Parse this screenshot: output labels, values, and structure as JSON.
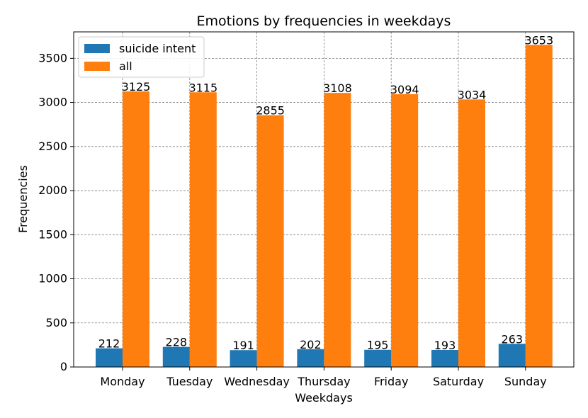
{
  "chart_data": {
    "type": "bar",
    "title": "Emotions by frequencies in weekdays",
    "xlabel": "Weekdays",
    "ylabel": "Frequencies",
    "categories": [
      "Monday",
      "Tuesday",
      "Wednesday",
      "Thursday",
      "Friday",
      "Saturday",
      "Sunday"
    ],
    "series": [
      {
        "name": "suicide intent",
        "color": "#1f77b4",
        "values": [
          212,
          228,
          191,
          202,
          195,
          193,
          263
        ]
      },
      {
        "name": "all",
        "color": "#ff7f0e",
        "values": [
          3125,
          3115,
          2855,
          3108,
          3094,
          3034,
          3653
        ]
      }
    ],
    "ylim": [
      0,
      3800
    ],
    "yticks": [
      0,
      500,
      1000,
      1500,
      2000,
      2500,
      3000,
      3500
    ],
    "grid": true,
    "legend_position": "top-left"
  }
}
